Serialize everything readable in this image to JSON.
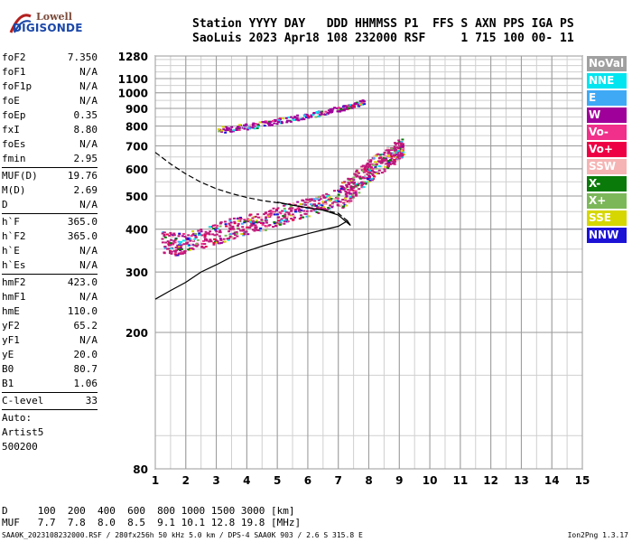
{
  "logo": {
    "line1": "Lowell",
    "line2": "DIGISONDE"
  },
  "header": {
    "line1": "Station YYYY DAY   DDD HHMMSS P1  FFS S AXN PPS IGA PS",
    "line2": "SaoLuis 2023 Apr18 108 232000 RSF     1 715 100 00- 11"
  },
  "params": {
    "group1": [
      {
        "label": "foF2",
        "value": "7.350"
      },
      {
        "label": "foF1",
        "value": "N/A"
      },
      {
        "label": "foF1p",
        "value": "N/A"
      },
      {
        "label": "foE",
        "value": "N/A"
      },
      {
        "label": "foEp",
        "value": "0.35"
      },
      {
        "label": "fxI",
        "value": "8.80"
      },
      {
        "label": "foEs",
        "value": "N/A"
      },
      {
        "label": "fmin",
        "value": "2.95"
      }
    ],
    "group2": [
      {
        "label": "MUF(D)",
        "value": "19.76"
      },
      {
        "label": "M(D)",
        "value": "2.69"
      },
      {
        "label": "D",
        "value": "N/A"
      }
    ],
    "group3": [
      {
        "label": "h`F",
        "value": "365.0"
      },
      {
        "label": "h`F2",
        "value": "365.0"
      },
      {
        "label": "h`E",
        "value": "N/A"
      },
      {
        "label": "h`Es",
        "value": "N/A"
      }
    ],
    "group4": [
      {
        "label": "hmF2",
        "value": "423.0"
      },
      {
        "label": "hmF1",
        "value": "N/A"
      },
      {
        "label": "hmE",
        "value": "110.0"
      },
      {
        "label": "yF2",
        "value": "65.2"
      },
      {
        "label": "yF1",
        "value": "N/A"
      },
      {
        "label": "yE",
        "value": "20.0"
      },
      {
        "label": "B0",
        "value": "80.7"
      },
      {
        "label": "B1",
        "value": "1.06"
      }
    ],
    "clevel": {
      "label": "C-level",
      "value": "33"
    },
    "auto": [
      "Auto:",
      "Artist5",
      "500200"
    ]
  },
  "legend": [
    {
      "name": "NoVal",
      "color": "#a0a0a0"
    },
    {
      "name": "NNE",
      "color": "#00e5f0"
    },
    {
      "name": "E",
      "color": "#3fa9f5"
    },
    {
      "name": "W",
      "color": "#a0009a"
    },
    {
      "name": "Vo-",
      "color": "#f0308a"
    },
    {
      "name": "Vo+",
      "color": "#ee0044"
    },
    {
      "name": "SSW",
      "color": "#f6b3b3"
    },
    {
      "name": "X-",
      "color": "#0a7a0a"
    },
    {
      "name": "X+",
      "color": "#7cb85a"
    },
    {
      "name": "SSE",
      "color": "#d6d600"
    },
    {
      "name": "NNW",
      "color": "#1c12d6"
    }
  ],
  "mufd": {
    "line1": "D     100  200  400  600  800 1000 1500 3000 [km]",
    "line2": "MUF   7.7  7.8  8.0  8.5  9.1 10.1 12.8 19.8 [MHz]"
  },
  "footer": "SAA0K_2023108232000.RSF / 280fx256h 50 kHz 5.0 km / DPS-4 SAA0K 903 / 2.6 S 315.8 E",
  "version": "Ion2Png 1.3.17",
  "chart_data": {
    "type": "scatter",
    "x_ticks": [
      1,
      2,
      3,
      4,
      5,
      6,
      7,
      8,
      9,
      10,
      11,
      12,
      13,
      14,
      15
    ],
    "y_ticks": [
      80,
      200,
      300,
      400,
      500,
      600,
      700,
      800,
      900,
      1000,
      1100,
      1280
    ],
    "x_range": [
      1,
      15
    ],
    "y_range": [
      80,
      1280
    ],
    "y_scale": "log",
    "grid": true,
    "legend_position": "right",
    "series": [
      {
        "name": "O-trace (F2)",
        "color": "#c0187a",
        "points": [
          [
            1.2,
            370
          ],
          [
            1.6,
            365
          ],
          [
            2.0,
            370
          ],
          [
            2.5,
            380
          ],
          [
            3.0,
            392
          ],
          [
            3.5,
            405
          ],
          [
            4.0,
            415
          ],
          [
            4.5,
            425
          ],
          [
            5.0,
            440
          ],
          [
            5.5,
            455
          ],
          [
            6.0,
            465
          ],
          [
            6.5,
            480
          ],
          [
            7.0,
            500
          ],
          [
            7.3,
            520
          ],
          [
            7.5,
            545
          ],
          [
            7.8,
            575
          ],
          [
            8.0,
            600
          ],
          [
            8.3,
            625
          ],
          [
            8.6,
            650
          ],
          [
            8.8,
            670
          ],
          [
            9.0,
            690
          ],
          [
            9.1,
            700
          ]
        ]
      },
      {
        "name": "Multihop echoes",
        "color": "#a0009a",
        "points": [
          [
            3.0,
            780
          ],
          [
            3.5,
            790
          ],
          [
            4.0,
            800
          ],
          [
            4.5,
            815
          ],
          [
            5.0,
            830
          ],
          [
            5.5,
            845
          ],
          [
            6.0,
            860
          ],
          [
            6.5,
            880
          ],
          [
            7.0,
            900
          ],
          [
            7.3,
            915
          ],
          [
            7.6,
            930
          ],
          [
            7.8,
            945
          ]
        ]
      },
      {
        "name": "Profile (lower)",
        "color": "#000000",
        "points": [
          [
            1.0,
            250
          ],
          [
            1.5,
            265
          ],
          [
            2.0,
            280
          ],
          [
            2.5,
            300
          ],
          [
            3.0,
            315
          ],
          [
            3.5,
            332
          ],
          [
            4.0,
            345
          ],
          [
            4.5,
            357
          ],
          [
            5.0,
            368
          ],
          [
            5.5,
            378
          ],
          [
            6.0,
            388
          ],
          [
            6.5,
            398
          ],
          [
            7.0,
            408
          ],
          [
            7.3,
            423
          ],
          [
            7.4,
            410
          ],
          [
            7.0,
            440
          ],
          [
            6.5,
            455
          ],
          [
            6.0,
            462
          ],
          [
            5.5,
            470
          ],
          [
            5.0,
            480
          ]
        ]
      },
      {
        "name": "Profile (dashed)",
        "color": "#000000",
        "points": [
          [
            1.0,
            670
          ],
          [
            1.5,
            620
          ],
          [
            2.0,
            580
          ],
          [
            2.5,
            548
          ],
          [
            3.0,
            525
          ],
          [
            3.5,
            508
          ],
          [
            4.0,
            495
          ],
          [
            4.5,
            485
          ],
          [
            5.0,
            478
          ],
          [
            5.5,
            470
          ],
          [
            6.0,
            462
          ],
          [
            6.5,
            455
          ],
          [
            7.0,
            445
          ],
          [
            7.3,
            423
          ]
        ]
      }
    ]
  }
}
